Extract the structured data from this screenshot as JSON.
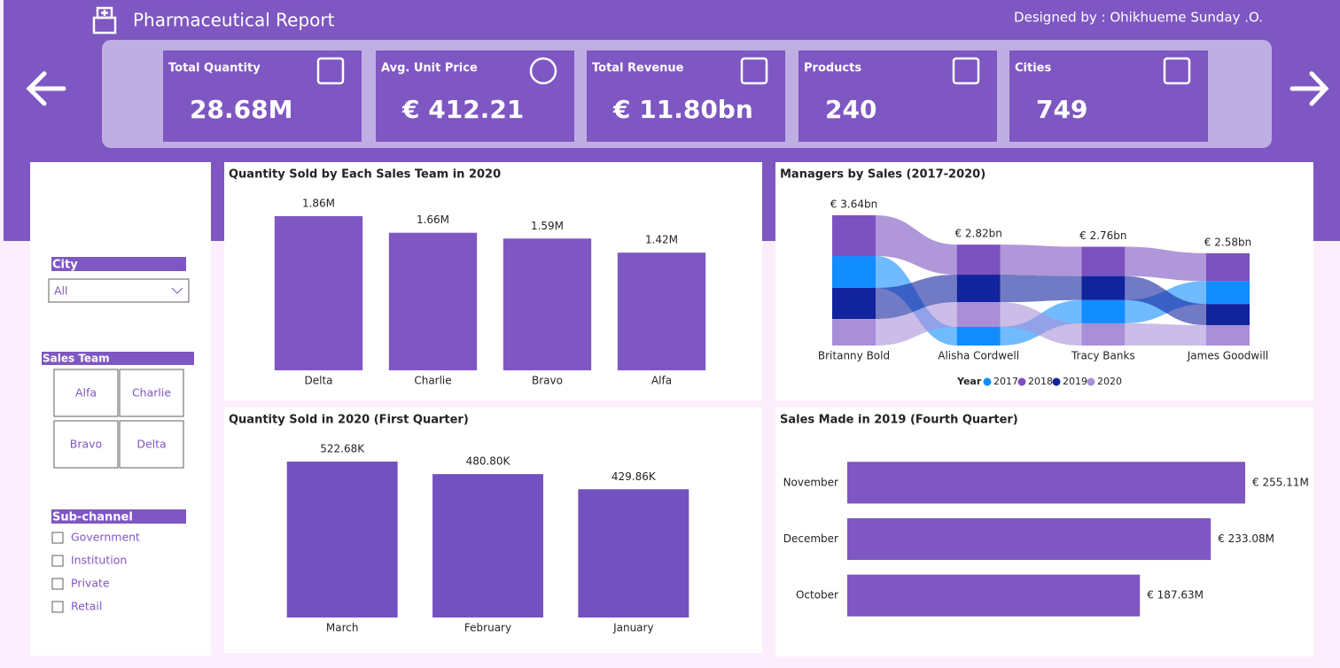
{
  "header": {
    "title": "Pharmaceutical Report",
    "credit": "Designed by : Ohikhueme Sunday .O."
  },
  "kpis": [
    {
      "label": "Total Quantity",
      "value": "28.68M"
    },
    {
      "label": "Avg. Unit Price",
      "value": "€ 412.21"
    },
    {
      "label": "Total Revenue",
      "value": "€ 11.80bn"
    },
    {
      "label": "Products",
      "value": "240"
    },
    {
      "label": "Cities",
      "value": "749"
    }
  ],
  "filters": {
    "city": {
      "label": "City",
      "selected": "All"
    },
    "sales_team": {
      "label": "Sales Team",
      "options": [
        "Alfa",
        "Charlie",
        "Bravo",
        "Delta"
      ]
    },
    "sub_channel": {
      "label": "Sub-channel",
      "options": [
        "Government",
        "Institution",
        "Private",
        "Retail"
      ]
    }
  },
  "chart_data": [
    {
      "type": "bar",
      "title": "Quantity Sold by Each Sales Team in 2020",
      "color": "#7e57c2",
      "categories": [
        "Delta",
        "Charlie",
        "Bravo",
        "Alfa"
      ],
      "values": [
        1860000,
        1660000,
        1590000,
        1420000
      ],
      "value_labels": [
        "1.86M",
        "1.66M",
        "1.59M",
        "1.42M"
      ]
    },
    {
      "type": "ribbon",
      "title": "Managers by Sales (2017-2020)",
      "categories": [
        "Britanny Bold",
        "Alisha Cordwell",
        "Tracy Banks",
        "James Goodwill"
      ],
      "totals": [
        3640000000,
        2820000000,
        2760000000,
        2580000000
      ],
      "total_labels": [
        "€ 3.64bn",
        "€ 2.82bn",
        "€ 2.76bn",
        "€ 2.58bn"
      ],
      "legend_title": "Year",
      "series": [
        {
          "name": "2017",
          "color": "#118dff",
          "values": [
            890000000,
            520000000,
            650000000,
            640000000
          ]
        },
        {
          "name": "2018",
          "color": "#7b52c0",
          "values": [
            1140000000,
            840000000,
            820000000,
            780000000
          ]
        },
        {
          "name": "2019",
          "color": "#12239e",
          "values": [
            870000000,
            770000000,
            670000000,
            590000000
          ]
        },
        {
          "name": "2020",
          "color": "#a98fd8",
          "values": [
            740000000,
            690000000,
            620000000,
            570000000
          ]
        }
      ]
    },
    {
      "type": "bar",
      "title": "Quantity Sold in 2020 (First Quarter)",
      "color": "#7451c1",
      "categories": [
        "March",
        "February",
        "January"
      ],
      "values": [
        522680,
        480800,
        429860
      ],
      "value_labels": [
        "522.68K",
        "480.80K",
        "429.86K"
      ]
    },
    {
      "type": "bar",
      "horizontal": true,
      "title": "Sales Made in 2019 (Fourth Quarter)",
      "color": "#7e57c2",
      "categories": [
        "November",
        "December",
        "October"
      ],
      "values": [
        255110000,
        233080000,
        187630000
      ],
      "value_labels": [
        "€ 255.11M",
        "€ 233.08M",
        "€ 187.63M"
      ]
    }
  ]
}
